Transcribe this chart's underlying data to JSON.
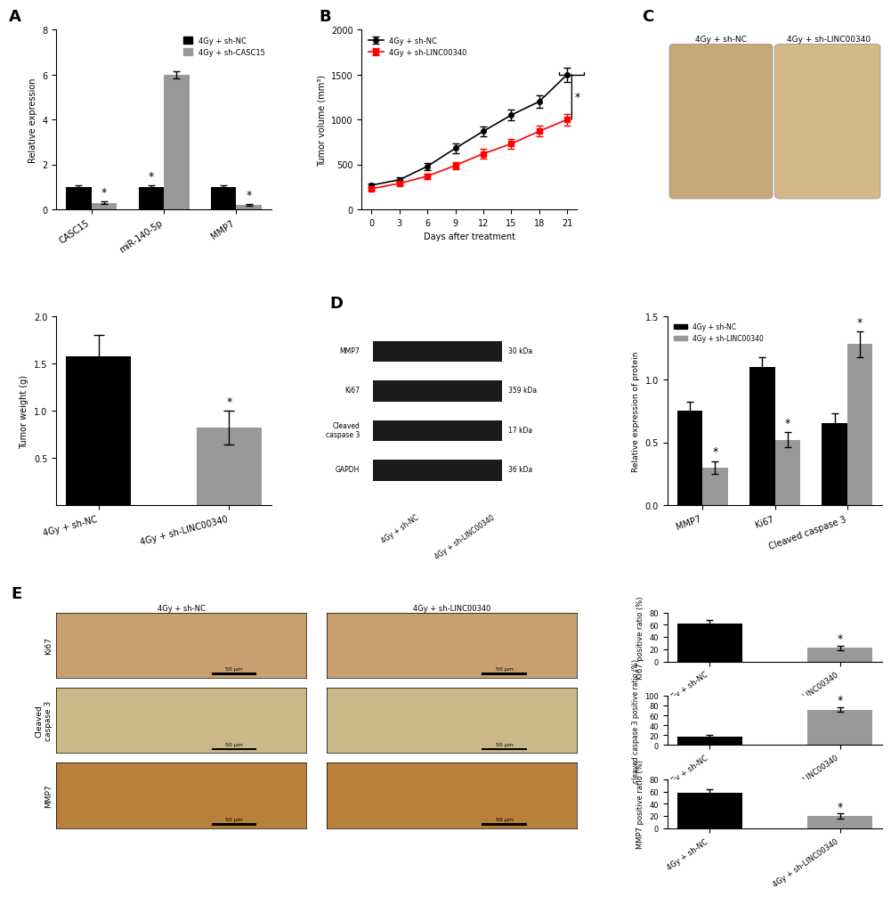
{
  "panel_A": {
    "categories": [
      "CASC15",
      "miR-140-5p",
      "MMP7"
    ],
    "black_values": [
      1.0,
      1.0,
      1.0
    ],
    "black_errors": [
      0.08,
      0.07,
      0.07
    ],
    "gray_values": [
      0.3,
      6.0,
      0.2
    ],
    "gray_errors": [
      0.05,
      0.15,
      0.05
    ],
    "ylabel": "Relative expression",
    "ylim": [
      0,
      8
    ],
    "yticks": [
      0,
      2,
      4,
      6,
      8
    ],
    "legend_black": "4Gy + sh-NC",
    "legend_gray": "4Gy + sh-CASC15",
    "star_gray": [
      true,
      false,
      true
    ],
    "star_black": [
      false,
      true,
      false
    ]
  },
  "panel_B": {
    "days": [
      0,
      3,
      6,
      9,
      12,
      15,
      18,
      21
    ],
    "black_values": [
      270,
      330,
      480,
      680,
      870,
      1050,
      1200,
      1500
    ],
    "black_errors": [
      20,
      25,
      40,
      50,
      55,
      60,
      70,
      80
    ],
    "red_values": [
      230,
      290,
      370,
      490,
      620,
      730,
      870,
      1000
    ],
    "red_errors": [
      20,
      25,
      30,
      40,
      50,
      55,
      60,
      65
    ],
    "ylabel": "Tumor volume (mm³)",
    "xlabel": "Days after treatment",
    "ylim": [
      0,
      2000
    ],
    "yticks": [
      0,
      500,
      1000,
      1500,
      2000
    ],
    "legend_black": "4Gy + sh-NC",
    "legend_red": "4Gy + sh-LINC00340"
  },
  "panel_tumor_weight": {
    "categories": [
      "4Gy + sh-NC",
      "4Gy + sh-LINC00340"
    ],
    "values": [
      1.58,
      0.82
    ],
    "errors": [
      0.23,
      0.18
    ],
    "colors": [
      "#000000",
      "#999999"
    ],
    "ylabel": "Tumor weight (g)",
    "ylim": [
      0,
      2.0
    ],
    "yticks": [
      0.5,
      1.0,
      1.5,
      2.0
    ]
  },
  "panel_D_bar": {
    "categories": [
      "MMP7",
      "Ki67",
      "Cleaved caspase 3"
    ],
    "black_values": [
      0.75,
      1.1,
      0.65
    ],
    "black_errors": [
      0.07,
      0.08,
      0.08
    ],
    "gray_values": [
      0.3,
      0.52,
      1.28
    ],
    "gray_errors": [
      0.05,
      0.06,
      0.1
    ],
    "ylabel": "Relative expression of protein",
    "ylim": [
      0,
      1.5
    ],
    "yticks": [
      0.0,
      0.5,
      1.0,
      1.5
    ],
    "legend_black": "4Gy + sh-NC",
    "legend_gray": "4Gy + sh-LINC00340",
    "star_gray": [
      true,
      true,
      true
    ],
    "star_black": [
      false,
      false,
      false
    ]
  },
  "panel_Ki67": {
    "categories": [
      "4Gy + sh-NC",
      "4Gy + sh-LINC00340"
    ],
    "values": [
      62,
      22
    ],
    "errors": [
      6,
      4
    ],
    "colors": [
      "#000000",
      "#999999"
    ],
    "ylabel": "Ki67 positive ratio (%)",
    "ylim": [
      0,
      80
    ],
    "yticks": [
      0,
      20,
      40,
      60,
      80
    ]
  },
  "panel_Casp3": {
    "categories": [
      "4Gy + sh-NC",
      "4Gy + sh-LINC00340"
    ],
    "values": [
      17,
      72
    ],
    "errors": [
      3,
      5
    ],
    "colors": [
      "#000000",
      "#999999"
    ],
    "ylabel": "cleaved caspase 3 positive ratio (%)",
    "ylim": [
      0,
      100
    ],
    "yticks": [
      0,
      20,
      40,
      60,
      80,
      100
    ]
  },
  "panel_MMP7_IHC": {
    "categories": [
      "4Gy + sh-NC",
      "4Gy + sh-LINC00340"
    ],
    "values": [
      58,
      20
    ],
    "errors": [
      5,
      4
    ],
    "colors": [
      "#000000",
      "#999999"
    ],
    "ylabel": "MMP7 positive ratio (%)",
    "ylim": [
      0,
      80
    ],
    "yticks": [
      0,
      20,
      40,
      60,
      80
    ]
  },
  "colors": {
    "black": "#000000",
    "gray": "#999999",
    "red": "#ff0000",
    "white": "#ffffff"
  }
}
